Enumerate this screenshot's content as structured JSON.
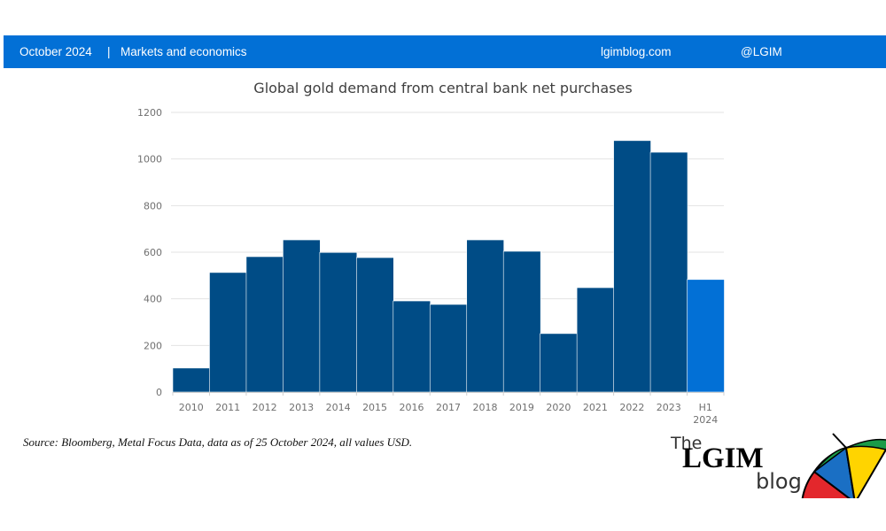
{
  "header": {
    "date": "October 2024",
    "separator": "|",
    "category": "Markets and economics",
    "site": "lgimblog.com",
    "handle": "@LGIM",
    "bar_color": "#0270d6"
  },
  "source_note": "Source: Bloomberg, Metal Focus Data, data as of 25 October 2024, all values USD.",
  "logo": {
    "the": "The",
    "lgim": "LGIM",
    "blog": "blog"
  },
  "chart_data": {
    "type": "bar",
    "title": "Global gold demand from central bank net purchases",
    "xlabel": "",
    "ylabel": "",
    "categories": [
      "2010",
      "2011",
      "2012",
      "2013",
      "2014",
      "2015",
      "2016",
      "2017",
      "2018",
      "2019",
      "2020",
      "2021",
      "2022",
      "2023",
      "H1 2024"
    ],
    "category_lines": [
      [
        "2010"
      ],
      [
        "2011"
      ],
      [
        "2012"
      ],
      [
        "2013"
      ],
      [
        "2014"
      ],
      [
        "2015"
      ],
      [
        "2016"
      ],
      [
        "2017"
      ],
      [
        "2018"
      ],
      [
        "2019"
      ],
      [
        "2020"
      ],
      [
        "2021"
      ],
      [
        "2022"
      ],
      [
        "2023"
      ],
      [
        "H1",
        "2024"
      ]
    ],
    "values": [
      103,
      513,
      581,
      653,
      599,
      577,
      391,
      376,
      653,
      604,
      251,
      448,
      1079,
      1029,
      483
    ],
    "colors": [
      "#004c86",
      "#004c86",
      "#004c86",
      "#004c86",
      "#004c86",
      "#004c86",
      "#004c86",
      "#004c86",
      "#004c86",
      "#004c86",
      "#004c86",
      "#004c86",
      "#004c86",
      "#004c86",
      "#0270d6"
    ],
    "ylim": [
      0,
      1200
    ],
    "yticks": [
      0,
      200,
      400,
      600,
      800,
      1000,
      1200
    ],
    "grid": true,
    "legend": "none"
  }
}
